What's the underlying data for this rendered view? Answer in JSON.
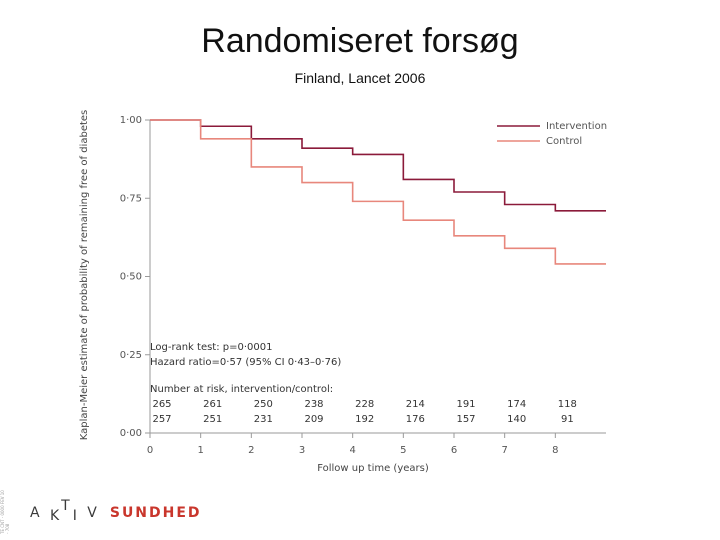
{
  "slide": {
    "title": "Randomiseret forsøg",
    "subtitle": "Finland, Lancet 2006",
    "logo_left": "A K T I V",
    "logo_right": "SUNDHED",
    "vertical_small_text": "TE CNT - 0000 FEV 10 - 708"
  },
  "colors": {
    "intervention": "#8b1a3a",
    "control": "#e8877c",
    "axis": "#9a9a9a",
    "logo_accent": "#c9362c"
  },
  "chart_data": {
    "type": "line",
    "step": true,
    "title": "",
    "xlabel": "Follow up time (years)",
    "ylabel": "Kaplan-Meier estimate of probability of remaining free of diabetes",
    "xlim": [
      0,
      9
    ],
    "ylim": [
      0,
      1
    ],
    "x_ticks": [
      0,
      1,
      2,
      3,
      4,
      5,
      6,
      7,
      8
    ],
    "x_tick_labels": [
      "0",
      "1",
      "2",
      "3",
      "4",
      "5",
      "6",
      "7",
      "8"
    ],
    "y_ticks": [
      0,
      0.25,
      0.5,
      0.75,
      1.0
    ],
    "y_tick_labels": [
      "0·00",
      "0·25",
      "0·50",
      "0·75",
      "1·00"
    ],
    "legend": {
      "placement": "top-right",
      "entries": [
        "Intervention",
        "Control"
      ]
    },
    "series": [
      {
        "name": "Intervention",
        "x": [
          0,
          0.5,
          1,
          2,
          3,
          4,
          5,
          6,
          7,
          8,
          9
        ],
        "y": [
          1.0,
          1.0,
          0.98,
          0.94,
          0.91,
          0.89,
          0.81,
          0.77,
          0.73,
          0.71,
          0.71
        ]
      },
      {
        "name": "Control",
        "x": [
          0,
          0.5,
          1,
          2,
          3,
          4,
          5,
          6,
          7,
          8,
          9
        ],
        "y": [
          1.0,
          1.0,
          0.94,
          0.85,
          0.8,
          0.74,
          0.68,
          0.63,
          0.59,
          0.54,
          0.54
        ]
      }
    ],
    "annotations": {
      "logrank": "Log-rank test: p=0·0001",
      "hazard": "Hazard ratio=0·57 (95% CI 0·43–0·76)",
      "risk_header": "Number at risk, intervention/control:"
    },
    "number_at_risk": {
      "x": [
        0,
        1,
        2,
        3,
        4,
        5,
        6,
        7,
        8
      ],
      "intervention": [
        "265",
        "261",
        "250",
        "238",
        "228",
        "214",
        "191",
        "174",
        "118"
      ],
      "control": [
        "257",
        "251",
        "231",
        "209",
        "192",
        "176",
        "157",
        "140",
        "91"
      ]
    }
  }
}
